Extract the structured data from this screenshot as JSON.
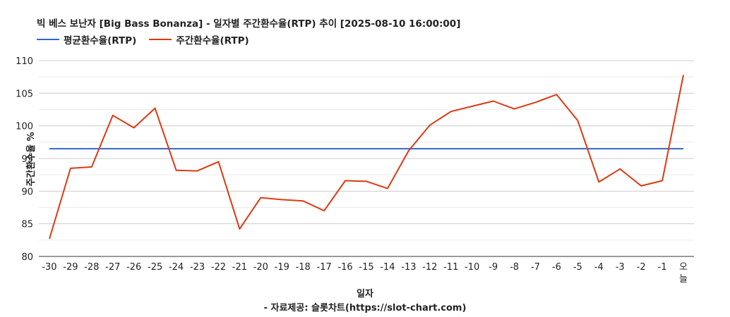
{
  "chart_data": {
    "type": "line",
    "title": "빅 베스 보난자 [Big Bass Bonanza] - 일자별 주간환수율(RTP) 추이 [2025-08-10 16:00:00]",
    "xlabel": "일자",
    "ylabel": "주간환수율 %",
    "source": "- 자료제공: 슬롯차트(https://slot-chart.com)",
    "ylim": [
      80,
      110
    ],
    "yticks": [
      80,
      85,
      90,
      95,
      100,
      105,
      110
    ],
    "grid": true,
    "legend_position": "top-left",
    "categories": [
      "-30",
      "-29",
      "-28",
      "-27",
      "-26",
      "-25",
      "-24",
      "-23",
      "-22",
      "-21",
      "-20",
      "-19",
      "-18",
      "-17",
      "-16",
      "-15",
      "-14",
      "-13",
      "-12",
      "-11",
      "-10",
      "-9",
      "-8",
      "-7",
      "-6",
      "-5",
      "-4",
      "-3",
      "-2",
      "-1",
      "오늘"
    ],
    "series": [
      {
        "name": "평균환수율(RTP)",
        "color": "#3366cc",
        "values": [
          96.5,
          96.5,
          96.5,
          96.5,
          96.5,
          96.5,
          96.5,
          96.5,
          96.5,
          96.5,
          96.5,
          96.5,
          96.5,
          96.5,
          96.5,
          96.5,
          96.5,
          96.5,
          96.5,
          96.5,
          96.5,
          96.5,
          96.5,
          96.5,
          96.5,
          96.5,
          96.5,
          96.5,
          96.5,
          96.5,
          96.5
        ]
      },
      {
        "name": "주간환수율(RTP)",
        "color": "#dc3912",
        "values": [
          82.7,
          93.5,
          93.7,
          101.6,
          99.7,
          102.7,
          93.2,
          93.1,
          94.5,
          84.2,
          89.0,
          88.7,
          88.5,
          87.0,
          91.6,
          91.5,
          90.4,
          96.2,
          100.1,
          102.2,
          103.0,
          103.8,
          102.6,
          103.6,
          104.8,
          100.8,
          91.4,
          93.4,
          90.8,
          91.6,
          107.8
        ]
      }
    ]
  }
}
